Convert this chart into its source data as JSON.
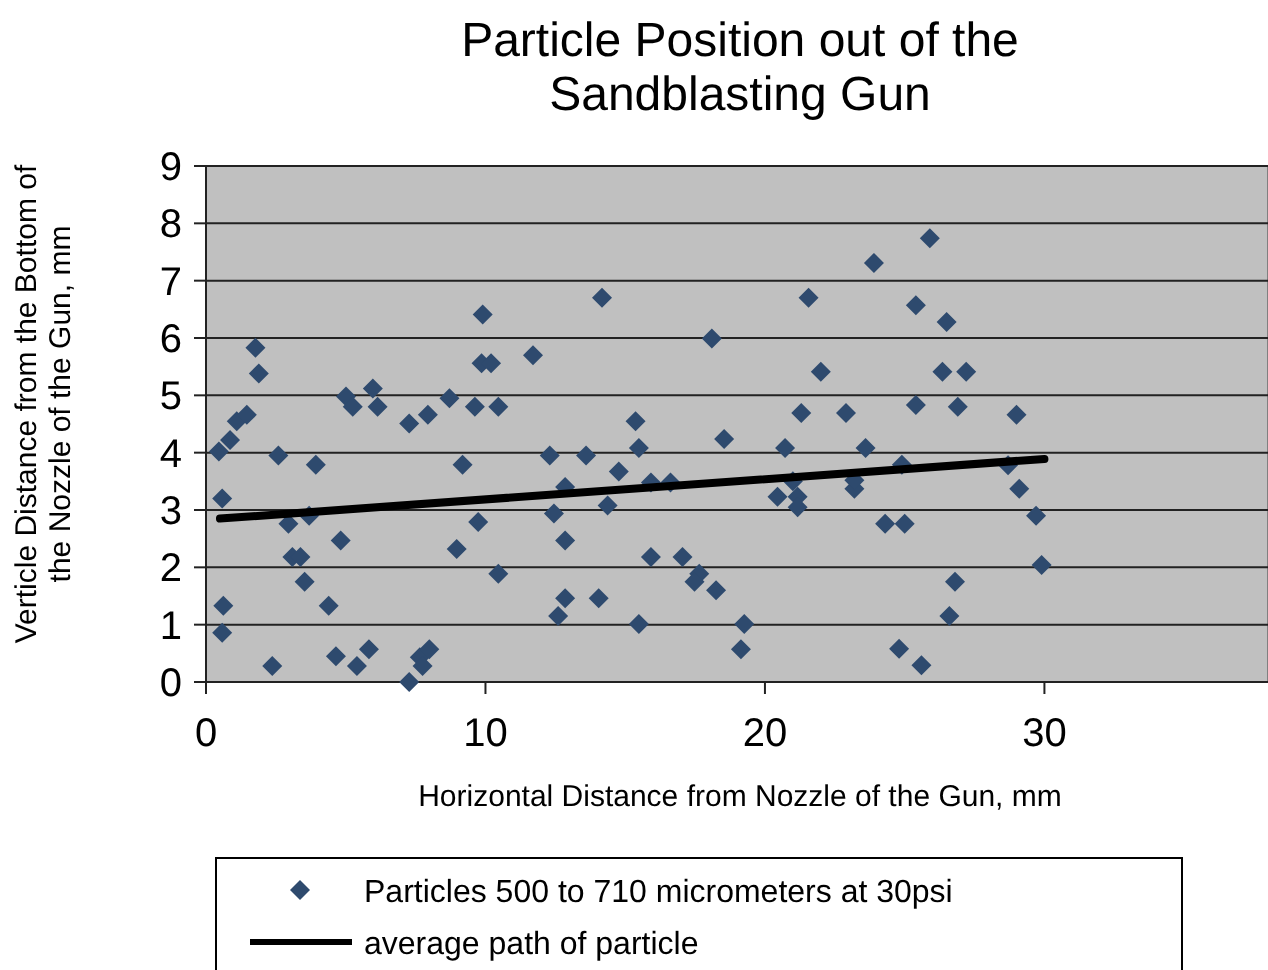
{
  "chart_data": {
    "type": "scatter",
    "title": "Particle Position out of the Sandblasting Gun",
    "xlabel": "Horizontal Distance from Nozzle of the Gun, mm",
    "ylabel": "Verticle Distance from the Bottom of the Nozzle of the Gun, mm",
    "xlim": [
      0,
      38
    ],
    "xticks": [
      0,
      10,
      20,
      30
    ],
    "ylim": [
      0,
      9
    ],
    "yticks": [
      0,
      1,
      2,
      3,
      4,
      5,
      6,
      7,
      8,
      9
    ],
    "grid": "y",
    "legend": "bottom",
    "series": [
      {
        "name": "Particles 500 to 710 micrometers at 30psi",
        "color": "#2e4a6e",
        "marker": "diamond",
        "x": [
          0.46,
          0.86,
          1.1,
          1.46,
          0.58,
          0.62,
          0.58,
          1.77,
          1.89,
          2.59,
          2.37,
          2.95,
          3.09,
          3.38,
          3.69,
          3.93,
          3.53,
          4.39,
          4.82,
          4.65,
          5.01,
          5.25,
          5.4,
          5.97,
          6.14,
          5.83,
          7.27,
          7.27,
          7.65,
          7.75,
          7.99,
          7.94,
          8.71,
          8.97,
          9.18,
          9.74,
          9.62,
          9.9,
          9.86,
          10.2,
          10.46,
          10.46,
          11.7,
          12.3,
          12.45,
          12.85,
          12.85,
          12.85,
          12.6,
          13.6,
          14.05,
          14.17,
          14.37,
          14.77,
          15.37,
          15.49,
          15.49,
          15.92,
          15.92,
          16.62,
          17.05,
          17.65,
          17.48,
          18.25,
          18.1,
          18.54,
          19.26,
          19.14,
          20.45,
          20.72,
          21.0,
          21.17,
          21.17,
          21.3,
          21.56,
          22.0,
          22.9,
          23.2,
          23.2,
          23.6,
          23.9,
          24.3,
          25.0,
          24.9,
          24.8,
          25.4,
          25.4,
          25.6,
          25.9,
          26.5,
          26.35,
          27.2,
          26.9,
          29.0,
          28.7,
          29.1,
          29.7,
          29.9,
          26.8,
          26.6
        ],
        "values": [
          4.02,
          4.22,
          4.55,
          4.66,
          3.2,
          1.33,
          0.86,
          5.83,
          5.38,
          3.95,
          0.28,
          2.76,
          2.18,
          2.18,
          2.9,
          3.79,
          1.75,
          1.33,
          2.47,
          0.45,
          4.98,
          4.8,
          0.28,
          5.12,
          4.8,
          0.57,
          0.0,
          4.51,
          0.43,
          0.28,
          0.57,
          4.66,
          4.95,
          2.32,
          3.79,
          2.79,
          4.8,
          6.41,
          5.56,
          5.56,
          4.8,
          1.89,
          5.7,
          3.95,
          2.94,
          3.4,
          2.47,
          1.46,
          1.15,
          3.95,
          1.46,
          6.7,
          3.08,
          3.67,
          4.55,
          4.08,
          1.01,
          3.48,
          2.18,
          3.48,
          2.18,
          1.89,
          1.75,
          1.6,
          5.99,
          4.24,
          1.01,
          0.57,
          3.23,
          4.08,
          3.5,
          3.23,
          3.05,
          4.69,
          6.7,
          5.41,
          4.69,
          3.37,
          3.52,
          4.08,
          7.31,
          2.76,
          2.76,
          3.79,
          0.58,
          6.57,
          4.83,
          0.29,
          7.74,
          6.28,
          5.41,
          5.41,
          4.8,
          4.66,
          3.78,
          3.37,
          2.9,
          2.04,
          1.75,
          1.15
        ]
      },
      {
        "name": "average path of particle",
        "type": "line",
        "color": "#000000",
        "marker": "none",
        "line_style": "solid",
        "x": [
          0.5,
          30
        ],
        "values": [
          2.85,
          3.89
        ]
      }
    ]
  }
}
